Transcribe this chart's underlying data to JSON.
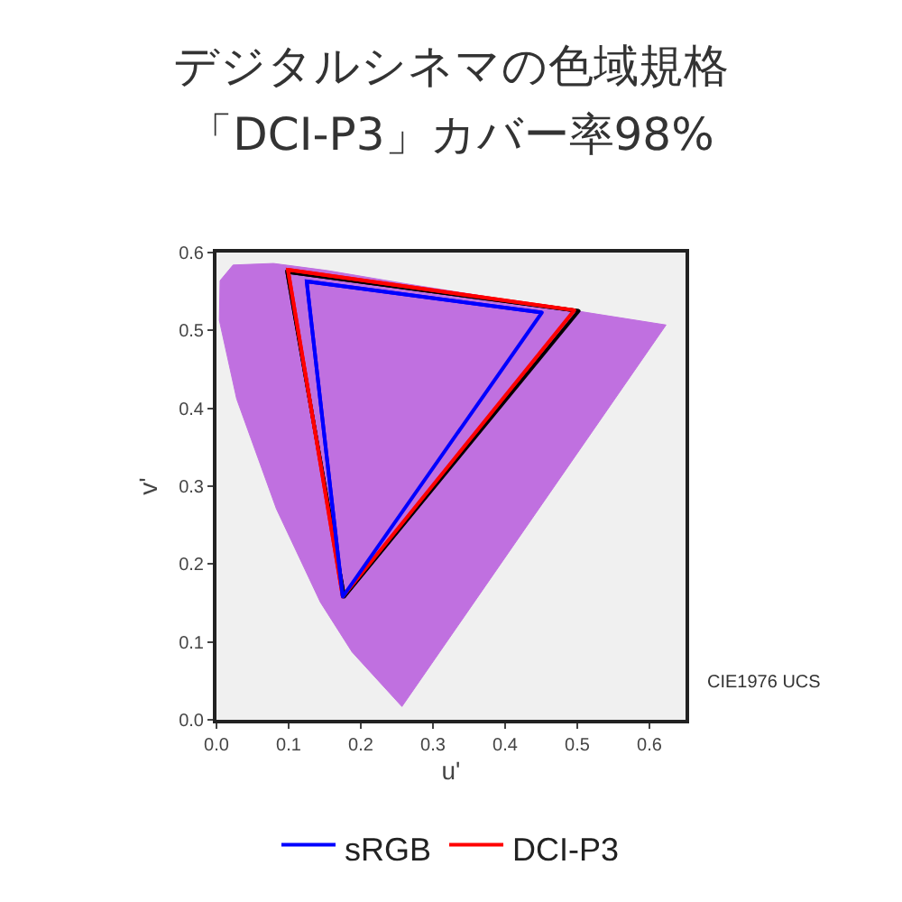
{
  "chart_data": {
    "type": "line",
    "title": "デジタルシネマの色域規格「DCI-P3」カバー率98%",
    "xlabel": "u'",
    "ylabel": "v'",
    "xlim": [
      0,
      0.65
    ],
    "ylim": [
      0,
      0.6
    ],
    "xticks": [
      {
        "value": 0,
        "label": "0.0"
      },
      0.1,
      0.2,
      0.3,
      0.4,
      0.5,
      0.6
    ],
    "yticks": [
      {
        "value": 0,
        "label": "0.0"
      },
      0.1,
      0.2,
      0.3,
      0.4,
      0.5,
      0.6
    ],
    "grid": false,
    "legend": "bottom",
    "marker": "none",
    "line_style": "solid",
    "annotations": [
      "CIE1976 UCS"
    ],
    "series": [
      {
        "type": "area",
        "color": "#c070e0",
        "x": [
          0.257,
          0.188,
          0.144,
          0.083,
          0.028,
          0.004,
          0.005,
          0.023,
          0.079,
          0.153,
          0.262,
          0.404,
          0.52,
          0.623,
          0.257
        ],
        "values": [
          0.017,
          0.087,
          0.151,
          0.271,
          0.412,
          0.513,
          0.564,
          0.584,
          0.586,
          0.577,
          0.56,
          0.539,
          0.522,
          0.507,
          0.017
        ]
      },
      {
        "name": "sRGB",
        "color": "#0000ff",
        "x": [
          0.451,
          0.125,
          0.175
        ],
        "values": [
          0.523,
          0.563,
          0.158
        ]
      },
      {
        "name": "DCI-P3",
        "color": "#ff0000",
        "x": [
          0.496,
          0.099,
          0.175
        ],
        "values": [
          0.526,
          0.578,
          0.158
        ]
      },
      {
        "color": "#000000",
        "x": [
          0.502,
          0.098,
          0.177
        ],
        "values": [
          0.525,
          0.575,
          0.158
        ]
      }
    ]
  }
}
